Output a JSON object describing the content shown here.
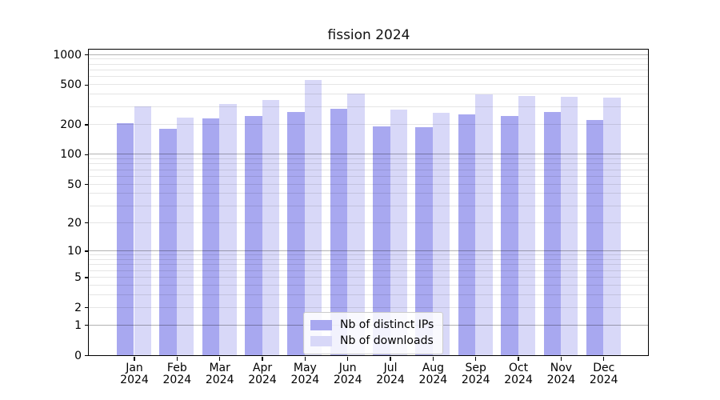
{
  "chart_data": {
    "type": "bar",
    "title": "fission 2024",
    "xlabel": "",
    "ylabel": "",
    "y_scale": "log1p (symlog-like, linear at 0)",
    "y_ticks": [
      1000,
      500,
      200,
      100,
      50,
      20,
      10,
      5,
      2,
      1,
      0
    ],
    "ylim": [
      0,
      1130
    ],
    "grid": true,
    "grid_major_values": [
      1,
      10,
      100,
      1000
    ],
    "legend_position": "lower center",
    "categories": [
      "Jan 2024",
      "Feb 2024",
      "Mar 2024",
      "Apr 2024",
      "May 2024",
      "Jun 2024",
      "Jul 2024",
      "Aug 2024",
      "Sep 2024",
      "Oct 2024",
      "Nov 2024",
      "Dec 2024"
    ],
    "x_tick_months": [
      "Jan",
      "Feb",
      "Mar",
      "Apr",
      "May",
      "Jun",
      "Jul",
      "Aug",
      "Sep",
      "Oct",
      "Nov",
      "Dec"
    ],
    "x_tick_year": "2024",
    "series": [
      {
        "name": "Nb of distinct IPs",
        "color": "#a8a8f0",
        "values": [
          205,
          182,
          228,
          241,
          267,
          284,
          192,
          187,
          251,
          243,
          267,
          222
        ]
      },
      {
        "name": "Nb of downloads",
        "color": "#d8d8f8",
        "values": [
          301,
          233,
          322,
          349,
          556,
          409,
          283,
          261,
          399,
          386,
          374,
          369
        ]
      }
    ]
  }
}
